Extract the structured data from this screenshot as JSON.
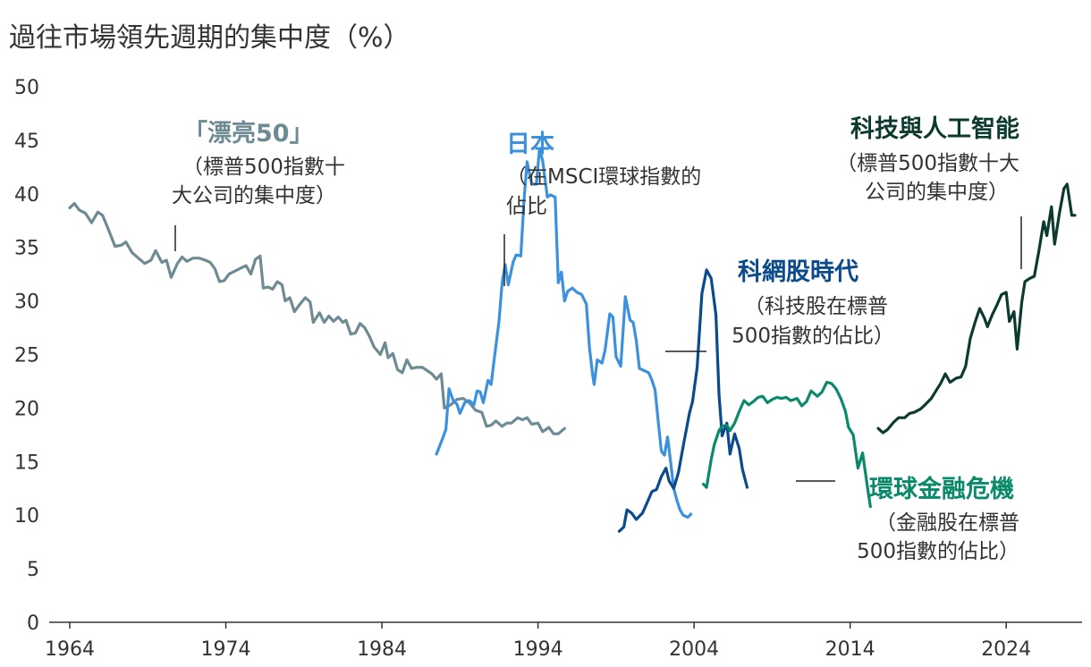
{
  "chart_data": {
    "type": "line",
    "title": "過往市場領先週期的集中度（%）",
    "xlabel": "",
    "ylabel": "",
    "xlim": [
      1964,
      2027
    ],
    "ylim": [
      0,
      50
    ],
    "x_ticks": [
      "1964",
      "1974",
      "1984",
      "1994",
      "2004",
      "2014",
      "2024"
    ],
    "y_ticks": [
      "0",
      "5",
      "10",
      "15",
      "20",
      "25",
      "30",
      "35",
      "40",
      "45",
      "50"
    ],
    "grid": false,
    "series": [
      {
        "name": "「漂亮50」",
        "color": "#6e8b94",
        "points": [
          [
            1964,
            38.7
          ],
          [
            1964.3,
            39.1
          ],
          [
            1964.6,
            38.5
          ],
          [
            1965,
            38.2
          ],
          [
            1965.4,
            37.3
          ],
          [
            1965.8,
            38.3
          ],
          [
            1966.1,
            38.0
          ],
          [
            1966.5,
            36.6
          ],
          [
            1966.9,
            35.1
          ],
          [
            1967.3,
            35.2
          ],
          [
            1967.6,
            35.5
          ],
          [
            1968,
            34.5
          ],
          [
            1968.4,
            34.0
          ],
          [
            1968.8,
            33.5
          ],
          [
            1969.2,
            33.8
          ],
          [
            1969.5,
            34.7
          ],
          [
            1969.9,
            33.6
          ],
          [
            1970.2,
            33.8
          ],
          [
            1970.5,
            32.2
          ],
          [
            1970.9,
            33.5
          ],
          [
            1971.2,
            34.1
          ],
          [
            1971.5,
            33.7
          ],
          [
            1971.9,
            34.0
          ],
          [
            1972.3,
            34.0
          ],
          [
            1972.7,
            33.8
          ],
          [
            1973,
            33.6
          ],
          [
            1973.3,
            33.0
          ],
          [
            1973.6,
            31.8
          ],
          [
            1973.9,
            31.9
          ],
          [
            1974.2,
            32.5
          ],
          [
            1974.6,
            32.8
          ],
          [
            1975,
            33.1
          ],
          [
            1975.3,
            33.3
          ],
          [
            1975.6,
            32.5
          ],
          [
            1975.9,
            33.9
          ],
          [
            1976.2,
            34.2
          ],
          [
            1976.4,
            31.2
          ],
          [
            1976.7,
            31.3
          ],
          [
            1977,
            31.1
          ],
          [
            1977.3,
            31.8
          ],
          [
            1977.6,
            31.5
          ],
          [
            1977.8,
            30.0
          ],
          [
            1978.1,
            30.3
          ],
          [
            1978.4,
            29.0
          ],
          [
            1978.8,
            29.8
          ],
          [
            1979.1,
            30.3
          ],
          [
            1979.4,
            29.9
          ],
          [
            1979.6,
            28.0
          ],
          [
            1980,
            28.9
          ],
          [
            1980.3,
            28.0
          ],
          [
            1980.6,
            28.6
          ],
          [
            1980.9,
            28.1
          ],
          [
            1981.2,
            28.5
          ],
          [
            1981.5,
            28.0
          ],
          [
            1981.7,
            28.2
          ],
          [
            1982,
            26.9
          ],
          [
            1982.3,
            27.0
          ],
          [
            1982.6,
            27.9
          ],
          [
            1982.9,
            27.5
          ],
          [
            1983.2,
            26.7
          ],
          [
            1983.5,
            25.7
          ],
          [
            1983.9,
            25.0
          ],
          [
            1984.2,
            26.1
          ],
          [
            1984.4,
            24.7
          ],
          [
            1984.7,
            25.1
          ],
          [
            1985,
            23.6
          ],
          [
            1985.3,
            23.3
          ],
          [
            1985.6,
            24.5
          ],
          [
            1985.9,
            23.7
          ],
          [
            1986.2,
            23.8
          ],
          [
            1986.6,
            23.8
          ],
          [
            1986.9,
            23.5
          ],
          [
            1987.2,
            23.2
          ],
          [
            1987.5,
            22.7
          ],
          [
            1987.8,
            23.2
          ],
          [
            1988,
            20.0
          ],
          [
            1988.4,
            20.3
          ],
          [
            1988.8,
            20.8
          ],
          [
            1989.2,
            20.9
          ],
          [
            1989.6,
            20.5
          ],
          [
            1990,
            19.8
          ],
          [
            1990.4,
            19.6
          ],
          [
            1990.7,
            18.3
          ],
          [
            1991,
            18.4
          ],
          [
            1991.3,
            18.8
          ],
          [
            1991.7,
            18.3
          ],
          [
            1992,
            18.6
          ],
          [
            1992.3,
            18.6
          ],
          [
            1992.7,
            19.1
          ],
          [
            1993,
            18.9
          ],
          [
            1993.3,
            19.1
          ],
          [
            1993.6,
            18.5
          ],
          [
            1994,
            18.6
          ],
          [
            1994.3,
            17.8
          ],
          [
            1994.7,
            18.2
          ],
          [
            1995,
            17.6
          ],
          [
            1995.3,
            17.6
          ],
          [
            1995.7,
            18.1
          ]
        ]
      },
      {
        "name": "日本",
        "color": "#3c91dc",
        "points": [
          [
            1987.5,
            15.7
          ],
          [
            1987.9,
            17.2
          ],
          [
            1988.1,
            18.0
          ],
          [
            1988.3,
            21.8
          ],
          [
            1988.6,
            20.6
          ],
          [
            1988.8,
            20.4
          ],
          [
            1989,
            19.5
          ],
          [
            1989.3,
            20.5
          ],
          [
            1989.6,
            20.7
          ],
          [
            1989.9,
            20.3
          ],
          [
            1990.1,
            21.6
          ],
          [
            1990.3,
            21.5
          ],
          [
            1990.5,
            20.5
          ],
          [
            1990.8,
            22.6
          ],
          [
            1991,
            22.2
          ],
          [
            1991.2,
            24.6
          ],
          [
            1991.5,
            28.1
          ],
          [
            1991.7,
            31.7
          ],
          [
            1991.9,
            33.4
          ],
          [
            1992.1,
            31.5
          ],
          [
            1992.4,
            33.6
          ],
          [
            1992.6,
            34.3
          ],
          [
            1992.9,
            34.2
          ],
          [
            1993.1,
            39.3
          ],
          [
            1993.3,
            43.0
          ],
          [
            1993.6,
            40.9
          ],
          [
            1993.9,
            40.9
          ],
          [
            1994.1,
            44.2
          ],
          [
            1994.3,
            43.1
          ],
          [
            1994.6,
            39.7
          ],
          [
            1994.8,
            39.9
          ],
          [
            1995.1,
            39.7
          ],
          [
            1995.3,
            31.7
          ],
          [
            1995.5,
            32.7
          ],
          [
            1995.7,
            30.0
          ],
          [
            1995.9,
            30.9
          ],
          [
            1996.2,
            31.2
          ],
          [
            1996.5,
            30.8
          ],
          [
            1996.8,
            30.6
          ],
          [
            1997.1,
            29.7
          ],
          [
            1997.3,
            25.6
          ],
          [
            1997.5,
            23.1
          ],
          [
            1997.6,
            22.2
          ],
          [
            1997.8,
            24.5
          ],
          [
            1998.1,
            24.2
          ],
          [
            1998.3,
            25.4
          ],
          [
            1998.6,
            28.8
          ],
          [
            1998.8,
            28.5
          ],
          [
            1999,
            24.8
          ],
          [
            1999.3,
            23.9
          ],
          [
            1999.6,
            30.4
          ],
          [
            1999.9,
            28.2
          ],
          [
            2000.1,
            28.0
          ],
          [
            2000.3,
            26.3
          ],
          [
            2000.5,
            23.7
          ],
          [
            2000.8,
            23.5
          ],
          [
            2001.1,
            23.3
          ],
          [
            2001.3,
            22.6
          ],
          [
            2001.5,
            21.7
          ],
          [
            2001.7,
            18.8
          ],
          [
            2001.9,
            16.0
          ],
          [
            2002.1,
            15.6
          ],
          [
            2002.3,
            17.3
          ],
          [
            2002.5,
            15.0
          ],
          [
            2002.7,
            12.5
          ],
          [
            2002.9,
            11.4
          ],
          [
            2003.1,
            10.5
          ],
          [
            2003.3,
            10.0
          ],
          [
            2003.6,
            9.8
          ],
          [
            2003.8,
            10.1
          ]
        ]
      },
      {
        "name": "科網股時代",
        "color": "#0b4a8c",
        "points": [
          [
            1999.2,
            8.5
          ],
          [
            1999.5,
            8.9
          ],
          [
            1999.7,
            10.5
          ],
          [
            2000,
            10.2
          ],
          [
            2000.3,
            9.6
          ],
          [
            2000.7,
            10.2
          ],
          [
            2001,
            11.2
          ],
          [
            2001.3,
            12.2
          ],
          [
            2001.6,
            12.4
          ],
          [
            2001.9,
            13.6
          ],
          [
            2002.2,
            14.4
          ],
          [
            2002.4,
            13.2
          ],
          [
            2002.7,
            12.5
          ],
          [
            2003,
            14.0
          ],
          [
            2003.3,
            16.4
          ],
          [
            2003.7,
            19.5
          ],
          [
            2003.9,
            20.6
          ],
          [
            2004.2,
            23.8
          ],
          [
            2004.5,
            30.7
          ],
          [
            2004.8,
            32.9
          ],
          [
            2005.1,
            32.1
          ],
          [
            2005.4,
            28.7
          ],
          [
            2005.6,
            21.3
          ],
          [
            2005.8,
            17.4
          ],
          [
            2006.1,
            18.6
          ],
          [
            2006.3,
            15.7
          ],
          [
            2006.6,
            17.6
          ],
          [
            2006.9,
            16.2
          ],
          [
            2007.1,
            14.3
          ],
          [
            2007.4,
            12.6
          ]
        ]
      },
      {
        "name": "環球金融危機",
        "color": "#0a8a6a",
        "points": [
          [
            2004.6,
            12.9
          ],
          [
            2004.8,
            12.6
          ],
          [
            2005.1,
            15.2
          ],
          [
            2005.3,
            16.6
          ],
          [
            2005.6,
            17.9
          ],
          [
            2005.8,
            18.3
          ],
          [
            2006.1,
            18.4
          ],
          [
            2006.3,
            17.9
          ],
          [
            2006.6,
            18.6
          ],
          [
            2006.9,
            19.7
          ],
          [
            2007.2,
            20.7
          ],
          [
            2007.5,
            20.3
          ],
          [
            2007.8,
            20.6
          ],
          [
            2008.1,
            21.0
          ],
          [
            2008.4,
            21.1
          ],
          [
            2008.7,
            20.5
          ],
          [
            2009,
            20.8
          ],
          [
            2009.3,
            21.0
          ],
          [
            2009.6,
            20.9
          ],
          [
            2009.9,
            21.0
          ],
          [
            2010.2,
            20.7
          ],
          [
            2010.6,
            20.9
          ],
          [
            2010.9,
            20.2
          ],
          [
            2011.2,
            20.6
          ],
          [
            2011.5,
            21.6
          ],
          [
            2011.9,
            21.1
          ],
          [
            2012.2,
            21.5
          ],
          [
            2012.5,
            22.4
          ],
          [
            2012.8,
            22.3
          ],
          [
            2013.1,
            21.8
          ],
          [
            2013.4,
            20.9
          ],
          [
            2013.7,
            19.7
          ],
          [
            2013.9,
            18.2
          ],
          [
            2014.2,
            17.5
          ],
          [
            2014.5,
            14.4
          ],
          [
            2014.8,
            15.8
          ],
          [
            2015.1,
            12.7
          ],
          [
            2015.3,
            10.8
          ]
        ]
      },
      {
        "name": "科技與人工智能",
        "color": "#0d3a2f",
        "points": [
          [
            2015.8,
            18.1
          ],
          [
            2016.1,
            17.7
          ],
          [
            2016.4,
            18.0
          ],
          [
            2016.8,
            18.7
          ],
          [
            2017.1,
            19.1
          ],
          [
            2017.5,
            19.1
          ],
          [
            2017.8,
            19.5
          ],
          [
            2018.1,
            19.6
          ],
          [
            2018.5,
            19.9
          ],
          [
            2018.8,
            20.3
          ],
          [
            2019.2,
            20.9
          ],
          [
            2019.5,
            21.6
          ],
          [
            2019.8,
            22.3
          ],
          [
            2020.1,
            23.2
          ],
          [
            2020.4,
            22.4
          ],
          [
            2020.8,
            22.8
          ],
          [
            2021.1,
            22.9
          ],
          [
            2021.4,
            23.9
          ],
          [
            2021.7,
            26.5
          ],
          [
            2022,
            28.0
          ],
          [
            2022.3,
            29.3
          ],
          [
            2022.6,
            28.4
          ],
          [
            2022.8,
            27.6
          ],
          [
            2023.1,
            28.7
          ],
          [
            2023.4,
            29.6
          ],
          [
            2023.7,
            30.6
          ],
          [
            2024,
            30.8
          ],
          [
            2024.2,
            28.1
          ],
          [
            2024.5,
            29.0
          ],
          [
            2024.7,
            25.5
          ],
          [
            2025,
            29.9
          ],
          [
            2025.2,
            31.8
          ],
          [
            2025.5,
            32.1
          ],
          [
            2025.8,
            32.3
          ],
          [
            2026.1,
            34.7
          ],
          [
            2026.4,
            37.4
          ],
          [
            2026.6,
            36.1
          ],
          [
            2026.9,
            38.8
          ],
          [
            2027.1,
            35.3
          ],
          [
            2027.4,
            38.1
          ],
          [
            2027.7,
            40.5
          ],
          [
            2027.9,
            40.9
          ],
          [
            2028.2,
            38.0
          ],
          [
            2028.4,
            38.0
          ]
        ]
      }
    ]
  },
  "annotations": [
    {
      "title": "「漂亮50」",
      "lines": [
        "（標普500指數十",
        "大公司的集中度）"
      ]
    },
    {
      "title": "日本",
      "lines": [
        "（在MSCI環球指數的",
        "佔比"
      ]
    },
    {
      "title": "科網股時代",
      "lines": [
        "（科技股在標普",
        "500指數的佔比）"
      ]
    },
    {
      "title": "環球金融危機",
      "lines": [
        "（金融股在標普",
        "500指數的佔比）"
      ]
    },
    {
      "title": "科技與人工智能",
      "lines": [
        "（標普500指數十大",
        "公司的集中度）"
      ]
    }
  ]
}
